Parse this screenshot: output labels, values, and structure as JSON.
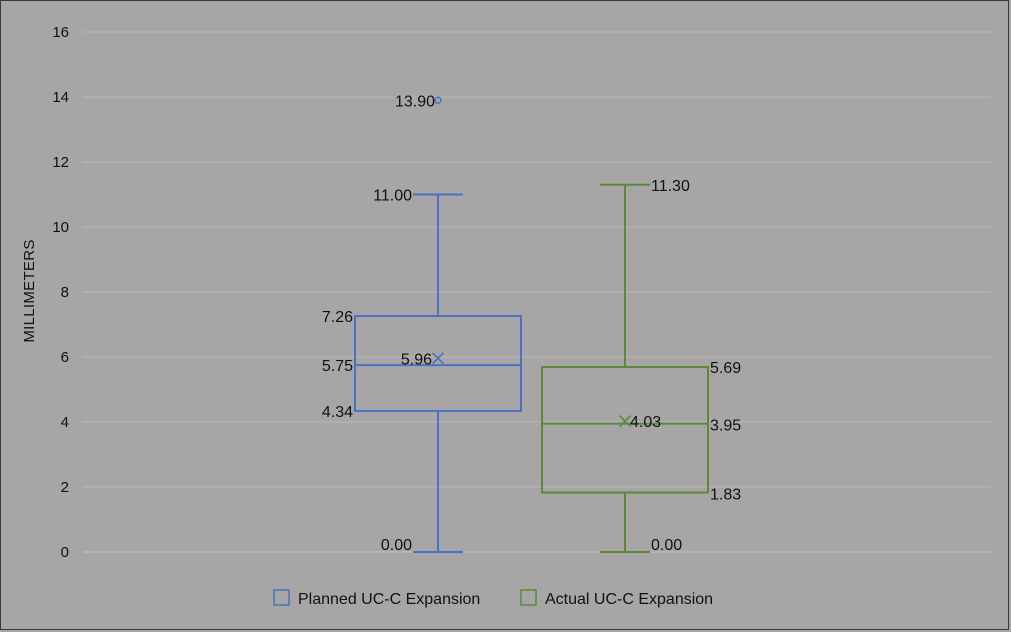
{
  "chart_data": {
    "type": "box",
    "title": "",
    "xlabel": "",
    "ylabel": "MILLIMETERS",
    "ylim": [
      0,
      16
    ],
    "yticks": [
      0,
      2,
      4,
      6,
      8,
      10,
      12,
      14,
      16
    ],
    "grid": true,
    "legend_position": "bottom",
    "series": [
      {
        "name": "Planned UC-C Expansion",
        "color": "#4a72c4",
        "min": 0.0,
        "q1": 4.34,
        "median": 5.75,
        "q3": 7.26,
        "max": 11.0,
        "mean": 5.96,
        "outliers": [
          13.9
        ],
        "labels": {
          "min": "0.00",
          "q1": "4.34",
          "median": "5.75",
          "q3": "7.26",
          "max": "11.00",
          "mean": "5.96",
          "outlier": "13.90"
        }
      },
      {
        "name": "Actual UC-C Expansion",
        "color": "#5a8a3a",
        "min": 0.0,
        "q1": 1.83,
        "median": 3.95,
        "q3": 5.69,
        "max": 11.3,
        "mean": 4.03,
        "outliers": [],
        "labels": {
          "min": "0.00",
          "q1": "1.83",
          "median": "3.95",
          "q3": "5.69",
          "max": "11.30",
          "mean": "4.03"
        }
      }
    ]
  }
}
